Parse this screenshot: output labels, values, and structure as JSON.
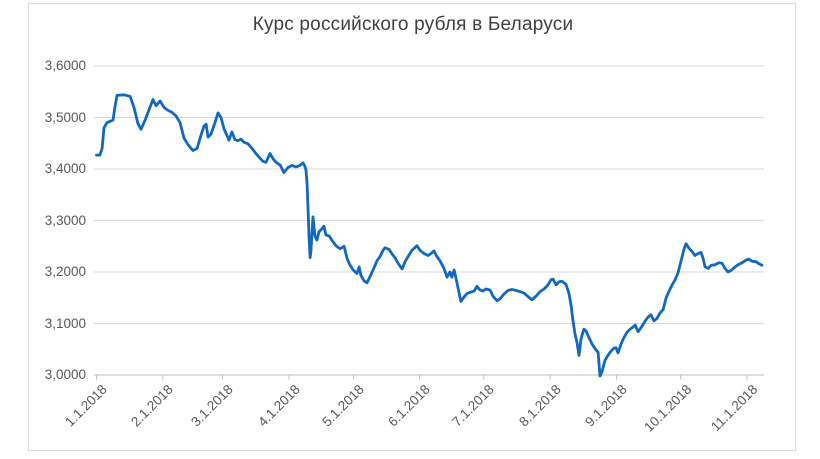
{
  "chart_data": {
    "type": "line",
    "title": "Курс российского рубля в Беларуси",
    "xlabel": "",
    "ylabel": "",
    "ylim": [
      3.0,
      3.6
    ],
    "grid": true,
    "legend": "none",
    "y_tick_labels": [
      "3,0000",
      "3,1000",
      "3,2000",
      "3,3000",
      "3,4000",
      "3,5000",
      "3,6000"
    ],
    "y_tick_values": [
      3.0,
      3.1,
      3.2,
      3.3,
      3.4,
      3.5,
      3.6
    ],
    "x_tick_labels": [
      "1.1.2018",
      "2.1.2018",
      "3.1.2018",
      "4.1.2018",
      "5.1.2018",
      "6.1.2018",
      "7.1.2018",
      "8.1.2018",
      "9.1.2018",
      "10.1.2018",
      "11.1.2018"
    ],
    "x_tick_days": [
      0,
      31,
      59,
      90,
      120,
      151,
      181,
      212,
      243,
      273,
      304
    ],
    "x_range_days": [
      0,
      311
    ],
    "line_color": "#1268be",
    "grid_color": "#d9d9d9",
    "axis_color": "#bfbfbf",
    "label_color": "#595959",
    "title_color": "#404040",
    "series": [
      {
        "points": [
          [
            0,
            3.427
          ],
          [
            1.6,
            3.427
          ],
          [
            2.6,
            3.44
          ],
          [
            3.5,
            3.48
          ],
          [
            4.9,
            3.49
          ],
          [
            7.7,
            3.495
          ],
          [
            8.6,
            3.52
          ],
          [
            9.6,
            3.543
          ],
          [
            12.9,
            3.544
          ],
          [
            15.7,
            3.541
          ],
          [
            17.5,
            3.52
          ],
          [
            19.4,
            3.488
          ],
          [
            20.8,
            3.477
          ],
          [
            22.7,
            3.495
          ],
          [
            25,
            3.52
          ],
          [
            26.4,
            3.535
          ],
          [
            27.8,
            3.523
          ],
          [
            29.7,
            3.532
          ],
          [
            31.5,
            3.52
          ],
          [
            33,
            3.515
          ],
          [
            35.3,
            3.51
          ],
          [
            37.2,
            3.503
          ],
          [
            39,
            3.49
          ],
          [
            40.9,
            3.46
          ],
          [
            42.8,
            3.447
          ],
          [
            44.2,
            3.44
          ],
          [
            45.1,
            3.436
          ],
          [
            47,
            3.44
          ],
          [
            48.4,
            3.46
          ],
          [
            50.2,
            3.483
          ],
          [
            51.2,
            3.487
          ],
          [
            52.1,
            3.462
          ],
          [
            53.5,
            3.468
          ],
          [
            55.4,
            3.49
          ],
          [
            56.8,
            3.509
          ],
          [
            58.2,
            3.5
          ],
          [
            59.6,
            3.478
          ],
          [
            61,
            3.465
          ],
          [
            61.9,
            3.456
          ],
          [
            63.3,
            3.472
          ],
          [
            64.7,
            3.457
          ],
          [
            66.1,
            3.455
          ],
          [
            67.5,
            3.458
          ],
          [
            68.9,
            3.452
          ],
          [
            70.8,
            3.449
          ],
          [
            72.7,
            3.44
          ],
          [
            74.5,
            3.43
          ],
          [
            76.4,
            3.421
          ],
          [
            77.8,
            3.415
          ],
          [
            79.2,
            3.413
          ],
          [
            81.1,
            3.43
          ],
          [
            82.5,
            3.42
          ],
          [
            83.9,
            3.413
          ],
          [
            85.8,
            3.408
          ],
          [
            87.6,
            3.393
          ],
          [
            89.5,
            3.403
          ],
          [
            91.4,
            3.407
          ],
          [
            93.2,
            3.404
          ],
          [
            95.1,
            3.407
          ],
          [
            96.5,
            3.412
          ],
          [
            97.4,
            3.405
          ],
          [
            97.9,
            3.398
          ],
          [
            98.4,
            3.37
          ],
          [
            98.8,
            3.33
          ],
          [
            99.3,
            3.27
          ],
          [
            99.8,
            3.228
          ],
          [
            100.2,
            3.24
          ],
          [
            101.2,
            3.307
          ],
          [
            102.1,
            3.27
          ],
          [
            103,
            3.262
          ],
          [
            104,
            3.278
          ],
          [
            104.9,
            3.282
          ],
          [
            106.3,
            3.289
          ],
          [
            107.2,
            3.272
          ],
          [
            108.7,
            3.27
          ],
          [
            110.5,
            3.259
          ],
          [
            111.9,
            3.251
          ],
          [
            113.8,
            3.245
          ],
          [
            115.7,
            3.25
          ],
          [
            117.1,
            3.226
          ],
          [
            118.5,
            3.213
          ],
          [
            119.9,
            3.204
          ],
          [
            121.7,
            3.197
          ],
          [
            122.7,
            3.21
          ],
          [
            123.6,
            3.193
          ],
          [
            125,
            3.183
          ],
          [
            126.4,
            3.179
          ],
          [
            128.3,
            3.195
          ],
          [
            129.7,
            3.208
          ],
          [
            131.1,
            3.222
          ],
          [
            132.5,
            3.23
          ],
          [
            133.9,
            3.242
          ],
          [
            134.8,
            3.247
          ],
          [
            136.7,
            3.244
          ],
          [
            138.1,
            3.235
          ],
          [
            139.5,
            3.228
          ],
          [
            140.9,
            3.217
          ],
          [
            142.8,
            3.206
          ],
          [
            144.2,
            3.22
          ],
          [
            145.6,
            3.23
          ],
          [
            147.4,
            3.242
          ],
          [
            149.8,
            3.251
          ],
          [
            151.2,
            3.242
          ],
          [
            153.1,
            3.236
          ],
          [
            154.9,
            3.232
          ],
          [
            156.3,
            3.236
          ],
          [
            157.7,
            3.241
          ],
          [
            159.1,
            3.23
          ],
          [
            160.5,
            3.222
          ],
          [
            162.4,
            3.207
          ],
          [
            163.8,
            3.19
          ],
          [
            165.2,
            3.2
          ],
          [
            166.1,
            3.19
          ],
          [
            167.1,
            3.204
          ],
          [
            168,
            3.188
          ],
          [
            169.4,
            3.16
          ],
          [
            170.3,
            3.143
          ],
          [
            171.7,
            3.151
          ],
          [
            173.1,
            3.158
          ],
          [
            175,
            3.161
          ],
          [
            176.4,
            3.163
          ],
          [
            177.8,
            3.172
          ],
          [
            179.2,
            3.165
          ],
          [
            180.6,
            3.163
          ],
          [
            182,
            3.167
          ],
          [
            183.9,
            3.165
          ],
          [
            185.3,
            3.153
          ],
          [
            187.2,
            3.144
          ],
          [
            188.6,
            3.148
          ],
          [
            190.4,
            3.157
          ],
          [
            192.3,
            3.164
          ],
          [
            194.2,
            3.166
          ],
          [
            196.1,
            3.164
          ],
          [
            197.9,
            3.162
          ],
          [
            199.8,
            3.159
          ],
          [
            201.7,
            3.152
          ],
          [
            203.5,
            3.146
          ],
          [
            205.4,
            3.153
          ],
          [
            207.3,
            3.162
          ],
          [
            209.2,
            3.167
          ],
          [
            211,
            3.175
          ],
          [
            212.4,
            3.185
          ],
          [
            213.4,
            3.186
          ],
          [
            214.8,
            3.175
          ],
          [
            216.2,
            3.181
          ],
          [
            217.6,
            3.182
          ],
          [
            219.4,
            3.176
          ],
          [
            220.8,
            3.158
          ],
          [
            221.8,
            3.135
          ],
          [
            222.7,
            3.105
          ],
          [
            223.6,
            3.08
          ],
          [
            224.6,
            3.062
          ],
          [
            225.5,
            3.038
          ],
          [
            226.4,
            3.07
          ],
          [
            227.8,
            3.089
          ],
          [
            228.8,
            3.085
          ],
          [
            230.2,
            3.072
          ],
          [
            231.6,
            3.06
          ],
          [
            233,
            3.051
          ],
          [
            234.4,
            3.044
          ],
          [
            235.3,
            2.998
          ],
          [
            236.2,
            3.006
          ],
          [
            237.6,
            3.028
          ],
          [
            239,
            3.038
          ],
          [
            240.4,
            3.046
          ],
          [
            241.8,
            3.052
          ],
          [
            242.8,
            3.053
          ],
          [
            243.7,
            3.043
          ],
          [
            245.1,
            3.06
          ],
          [
            246.5,
            3.073
          ],
          [
            247.9,
            3.083
          ],
          [
            249.3,
            3.089
          ],
          [
            250.7,
            3.093
          ],
          [
            251.7,
            3.097
          ],
          [
            253.1,
            3.084
          ],
          [
            254.5,
            3.092
          ],
          [
            256.3,
            3.104
          ],
          [
            257.7,
            3.112
          ],
          [
            259.1,
            3.117
          ],
          [
            260.5,
            3.105
          ],
          [
            261.9,
            3.11
          ],
          [
            263.3,
            3.12
          ],
          [
            264.8,
            3.127
          ],
          [
            266.2,
            3.15
          ],
          [
            267.6,
            3.163
          ],
          [
            269,
            3.175
          ],
          [
            270.4,
            3.185
          ],
          [
            271.8,
            3.199
          ],
          [
            273.2,
            3.222
          ],
          [
            274.6,
            3.245
          ],
          [
            275.5,
            3.255
          ],
          [
            276.9,
            3.246
          ],
          [
            278.3,
            3.24
          ],
          [
            279.7,
            3.232
          ],
          [
            281.1,
            3.236
          ],
          [
            282.5,
            3.238
          ],
          [
            283.4,
            3.228
          ],
          [
            284.4,
            3.21
          ],
          [
            285.8,
            3.207
          ],
          [
            287.2,
            3.213
          ],
          [
            289,
            3.214
          ],
          [
            290.9,
            3.218
          ],
          [
            292.3,
            3.217
          ],
          [
            293.7,
            3.207
          ],
          [
            295.1,
            3.2
          ],
          [
            296.5,
            3.203
          ],
          [
            297.9,
            3.208
          ],
          [
            299.8,
            3.214
          ],
          [
            301.7,
            3.218
          ],
          [
            303.5,
            3.223
          ],
          [
            304.9,
            3.225
          ],
          [
            306.3,
            3.221
          ],
          [
            308.2,
            3.22
          ],
          [
            309.6,
            3.216
          ],
          [
            311,
            3.213
          ]
        ]
      }
    ]
  }
}
